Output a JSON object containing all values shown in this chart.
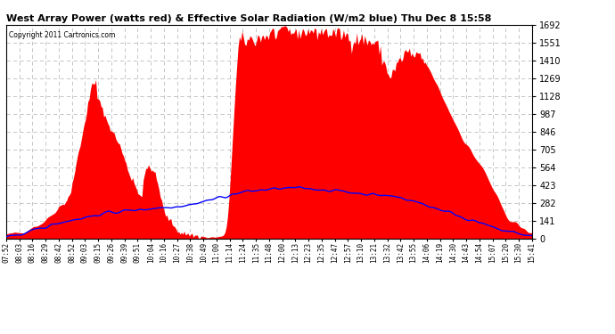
{
  "title": "West Array Power (watts red) & Effective Solar Radiation (W/m2 blue) Thu Dec 8 15:58",
  "copyright": "Copyright 2011 Cartronics.com",
  "bg_color": "#ffffff",
  "plot_bg_color": "#ffffff",
  "grid_color": "#bbbbbb",
  "fill_color": "#ff0000",
  "line_color": "#0000ff",
  "ymax": 1692.1,
  "ymin": 0.0,
  "yticks": [
    0.0,
    141.0,
    282.0,
    423.0,
    564.0,
    705.0,
    846.1,
    987.1,
    1128.1,
    1269.1,
    1410.1,
    1551.1,
    1692.1
  ],
  "xtick_labels": [
    "07:52",
    "08:03",
    "08:16",
    "08:29",
    "08:42",
    "08:52",
    "09:03",
    "09:15",
    "09:26",
    "09:39",
    "09:51",
    "10:04",
    "10:16",
    "10:27",
    "10:38",
    "10:49",
    "11:00",
    "11:14",
    "11:24",
    "11:35",
    "11:48",
    "12:00",
    "12:13",
    "12:23",
    "12:35",
    "12:47",
    "12:57",
    "13:10",
    "13:21",
    "13:32",
    "13:42",
    "13:55",
    "14:06",
    "14:19",
    "14:30",
    "14:43",
    "14:54",
    "15:07",
    "15:20",
    "15:30",
    "15:41"
  ]
}
